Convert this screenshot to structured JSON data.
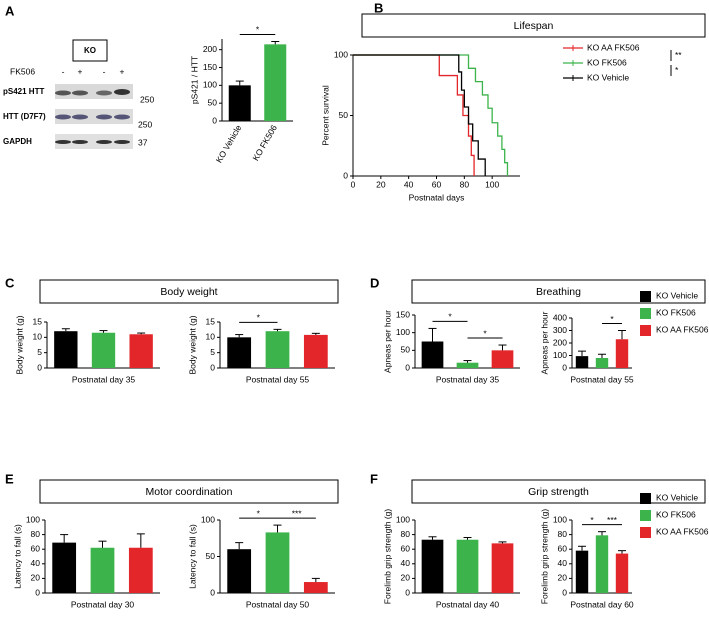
{
  "blot": {
    "panel": "A",
    "box": "KO",
    "treatment": "FK506",
    "lanes": [
      "-",
      "+",
      "-",
      "+"
    ],
    "rows": [
      {
        "label": "pS421 HTT",
        "size": 250
      },
      {
        "label": "HTT (D7F7)",
        "size": 250
      },
      {
        "label": "GAPDH",
        "size": 37
      }
    ]
  },
  "chart_data": [
    {
      "type": "bar",
      "ylabel": "pS421 / HTT",
      "categories": [
        "KO Vehicle",
        "KO FK506"
      ],
      "values": [
        100,
        215
      ],
      "errors": [
        12,
        8
      ],
      "colors": [
        "#000000",
        "#3cb44b"
      ],
      "ylim": [
        0,
        230
      ],
      "yticks": [
        0,
        50,
        100,
        150,
        200
      ],
      "annotations": [
        {
          "text": "*",
          "from": 0,
          "to": 1
        }
      ]
    },
    {
      "type": "survival",
      "panel": "B",
      "title": "Lifespan",
      "xlabel": "Postnatal days",
      "ylabel": "Percent survival",
      "xlim": [
        0,
        120
      ],
      "xticks": [
        0,
        20,
        40,
        60,
        80,
        100
      ],
      "ylim": [
        0,
        100
      ],
      "yticks": [
        0,
        50,
        100
      ],
      "series": [
        {
          "name": "KO AA FK506",
          "color": "#e3262a",
          "x": [
            0,
            62,
            75,
            79,
            83,
            85,
            87
          ],
          "values": [
            100,
            83,
            67,
            50,
            33,
            17,
            0
          ]
        },
        {
          "name": "KO FK506",
          "color": "#3cb44b",
          "x": [
            0,
            83,
            88,
            93,
            97,
            100,
            104,
            107,
            109,
            111
          ],
          "values": [
            100,
            89,
            78,
            67,
            56,
            44,
            33,
            22,
            11,
            0
          ]
        },
        {
          "name": "KO Vehicle",
          "color": "#000000",
          "x": [
            0,
            76,
            78,
            80,
            83,
            86,
            90,
            95
          ],
          "values": [
            100,
            86,
            71,
            57,
            43,
            29,
            14,
            0
          ]
        }
      ],
      "annotations": [
        {
          "text": "**",
          "from": 0,
          "to": 1
        },
        {
          "text": "*",
          "from": 1,
          "to": 2
        }
      ]
    },
    {
      "type": "bar",
      "panel": "C",
      "title": "Body weight",
      "xlabel": "Postnatal day 35",
      "ylabel": "Body weight (g)",
      "values": [
        12,
        11.5,
        11
      ],
      "errors": [
        0.8,
        0.7,
        0.4
      ],
      "colors": [
        "#000000",
        "#3cb44b",
        "#e3262a"
      ],
      "ylim": [
        0,
        15
      ],
      "yticks": [
        0,
        5,
        10,
        15
      ],
      "annotations": []
    },
    {
      "type": "bar",
      "xlabel": "Postnatal day 55",
      "ylabel": "Body weight (g)",
      "values": [
        10,
        12,
        10.8
      ],
      "errors": [
        0.9,
        0.6,
        0.5
      ],
      "colors": [
        "#000000",
        "#3cb44b",
        "#e3262a"
      ],
      "ylim": [
        0,
        15
      ],
      "yticks": [
        0,
        5,
        10,
        15
      ],
      "annotations": [
        {
          "text": "*",
          "from": 0,
          "to": 1
        }
      ]
    },
    {
      "type": "bar",
      "panel": "D",
      "title": "Breathing",
      "xlabel": "Postnatal day 35",
      "ylabel": "Apneas per hour",
      "values": [
        75,
        15,
        50
      ],
      "errors": [
        37,
        6,
        15
      ],
      "colors": [
        "#000000",
        "#3cb44b",
        "#e3262a"
      ],
      "ylim": [
        0,
        150
      ],
      "yticks": [
        0,
        50,
        100,
        150
      ],
      "annotations": [
        {
          "text": "*",
          "from": 0,
          "to": 1
        },
        {
          "text": "*",
          "from": 1,
          "to": 2
        }
      ]
    },
    {
      "type": "bar",
      "xlabel": "Postnatal day 55",
      "ylabel": "Apneas per hour",
      "values": [
        95,
        80,
        230
      ],
      "errors": [
        40,
        30,
        70
      ],
      "colors": [
        "#000000",
        "#3cb44b",
        "#e3262a"
      ],
      "ylim": [
        0,
        400
      ],
      "yticks": [
        0,
        100,
        200,
        300,
        400
      ],
      "annotations": [
        {
          "text": "*",
          "from": 1,
          "to": 2
        }
      ],
      "legend": [
        {
          "name": "KO Vehicle",
          "color": "#000000"
        },
        {
          "name": "KO FK506",
          "color": "#3cb44b"
        },
        {
          "name": "KO AA FK506",
          "color": "#e3262a"
        }
      ]
    },
    {
      "type": "bar",
      "panel": "E",
      "title": "Motor coordination",
      "xlabel": "Postnatal day 30",
      "ylabel": "Latency to fall (s)",
      "values": [
        69,
        62,
        62
      ],
      "errors": [
        11,
        9,
        19
      ],
      "colors": [
        "#000000",
        "#3cb44b",
        "#e3262a"
      ],
      "ylim": [
        0,
        100
      ],
      "yticks": [
        0,
        20,
        40,
        60,
        80,
        100
      ],
      "annotations": []
    },
    {
      "type": "bar",
      "xlabel": "Postnatal day 50",
      "ylabel": "Latency to fall (s)",
      "values": [
        60,
        83,
        15
      ],
      "errors": [
        9,
        10,
        5
      ],
      "colors": [
        "#000000",
        "#3cb44b",
        "#e3262a"
      ],
      "ylim": [
        0,
        100
      ],
      "yticks": [
        0,
        50,
        100
      ],
      "annotations": [
        {
          "text": "*",
          "from": 0,
          "to": 1
        },
        {
          "text": "***",
          "from": 1,
          "to": 2
        }
      ]
    },
    {
      "type": "bar",
      "panel": "F",
      "title": "Grip strength",
      "xlabel": "Postnatal day 40",
      "ylabel": "Forelimb grip strength (g)",
      "values": [
        73,
        73,
        68
      ],
      "errors": [
        4,
        3,
        2
      ],
      "colors": [
        "#000000",
        "#3cb44b",
        "#e3262a"
      ],
      "ylim": [
        0,
        100
      ],
      "yticks": [
        0,
        20,
        40,
        60,
        80,
        100
      ],
      "annotations": []
    },
    {
      "type": "bar",
      "xlabel": "Postnatal day 60",
      "ylabel": "Forelimb grip strength (g)",
      "values": [
        58,
        79,
        54
      ],
      "errors": [
        6,
        5,
        4
      ],
      "colors": [
        "#000000",
        "#3cb44b",
        "#e3262a"
      ],
      "ylim": [
        0,
        100
      ],
      "yticks": [
        0,
        20,
        40,
        60,
        80,
        100
      ],
      "annotations": [
        {
          "text": "*",
          "from": 0,
          "to": 1
        },
        {
          "text": "***",
          "from": 1,
          "to": 2
        }
      ],
      "legend": [
        {
          "name": "KO Vehicle",
          "color": "#000000"
        },
        {
          "name": "KO FK506",
          "color": "#3cb44b"
        },
        {
          "name": "KO AA FK506",
          "color": "#e3262a"
        }
      ]
    }
  ]
}
